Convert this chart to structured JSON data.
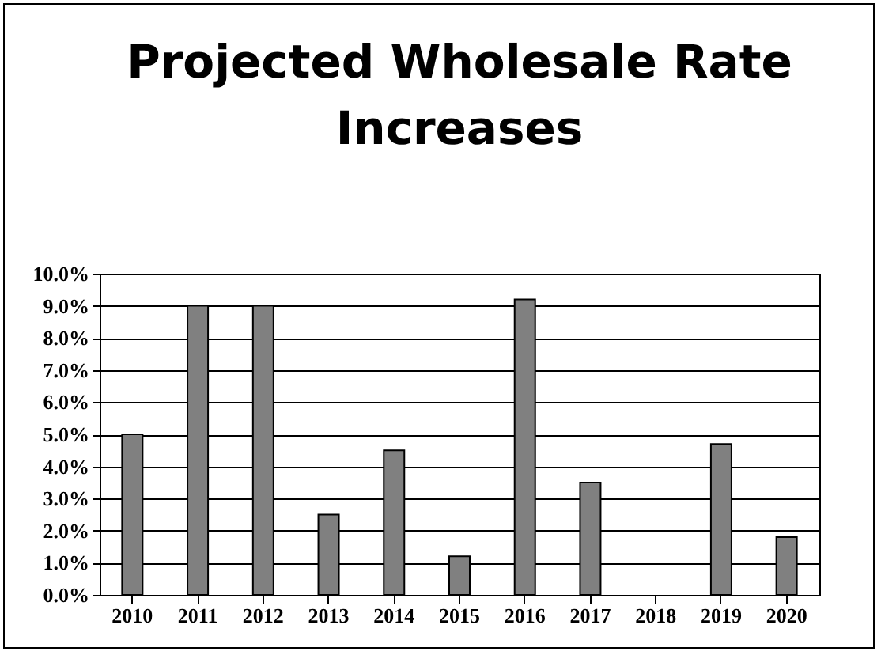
{
  "chart_data": {
    "type": "bar",
    "title": "Projected Wholesale Rate Increases",
    "categories": [
      "2010",
      "2011",
      "2012",
      "2013",
      "2014",
      "2015",
      "2016",
      "2017",
      "2018",
      "2019",
      "2020"
    ],
    "values": [
      5.0,
      9.0,
      9.0,
      2.5,
      4.5,
      1.2,
      9.2,
      3.5,
      0,
      4.7,
      1.8
    ],
    "color": "#808080",
    "ylim": [
      0,
      10
    ],
    "yticks": [
      {
        "value": 0,
        "label": "0.0%"
      },
      {
        "value": 1,
        "label": "1.0%"
      },
      {
        "value": 2,
        "label": "2.0%"
      },
      {
        "value": 3,
        "label": "3.0%"
      },
      {
        "value": 4,
        "label": "4.0%"
      },
      {
        "value": 5,
        "label": "5.0%"
      },
      {
        "value": 6,
        "label": "6.0%"
      },
      {
        "value": 7,
        "label": "7.0%"
      },
      {
        "value": 8,
        "label": "8.0%"
      },
      {
        "value": 9,
        "label": "9.0%"
      },
      {
        "value": 10,
        "label": "10.0%"
      }
    ],
    "grid": "y"
  }
}
